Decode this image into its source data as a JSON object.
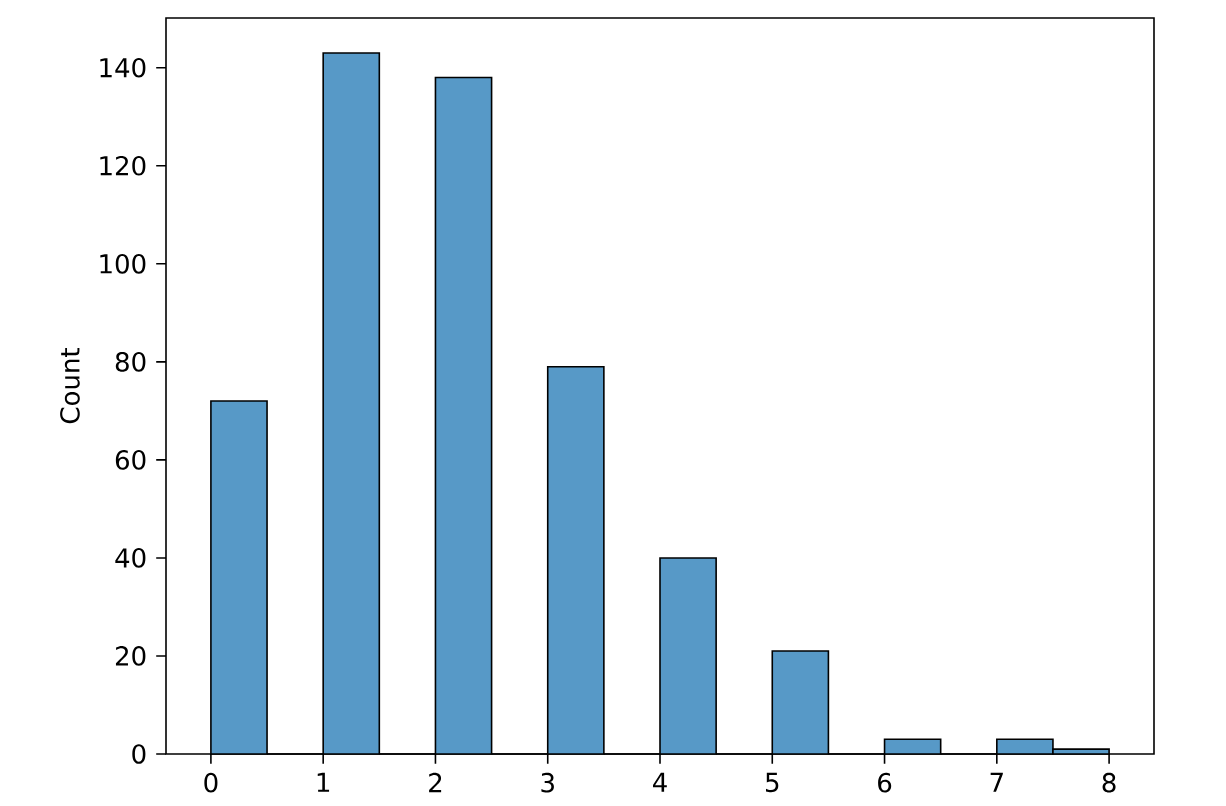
{
  "chart_data": {
    "type": "histogram",
    "ylabel": "Count",
    "bins": [
      0,
      0.5,
      1,
      1.5,
      2,
      2.5,
      3,
      3.5,
      4,
      4.5,
      5,
      5.5,
      6,
      6.5,
      7,
      7.5,
      8
    ],
    "values": [
      72,
      0,
      143,
      0,
      138,
      0,
      79,
      0,
      40,
      0,
      21,
      0,
      3,
      0,
      3,
      1
    ],
    "color": "#5799c7",
    "xlim": [
      -0.4,
      8.4
    ],
    "ylim": [
      0,
      150.15
    ],
    "xticks": [
      0,
      1,
      2,
      3,
      4,
      5,
      6,
      7,
      8
    ],
    "yticks": [
      0,
      20,
      40,
      60,
      80,
      100,
      120,
      140
    ]
  }
}
